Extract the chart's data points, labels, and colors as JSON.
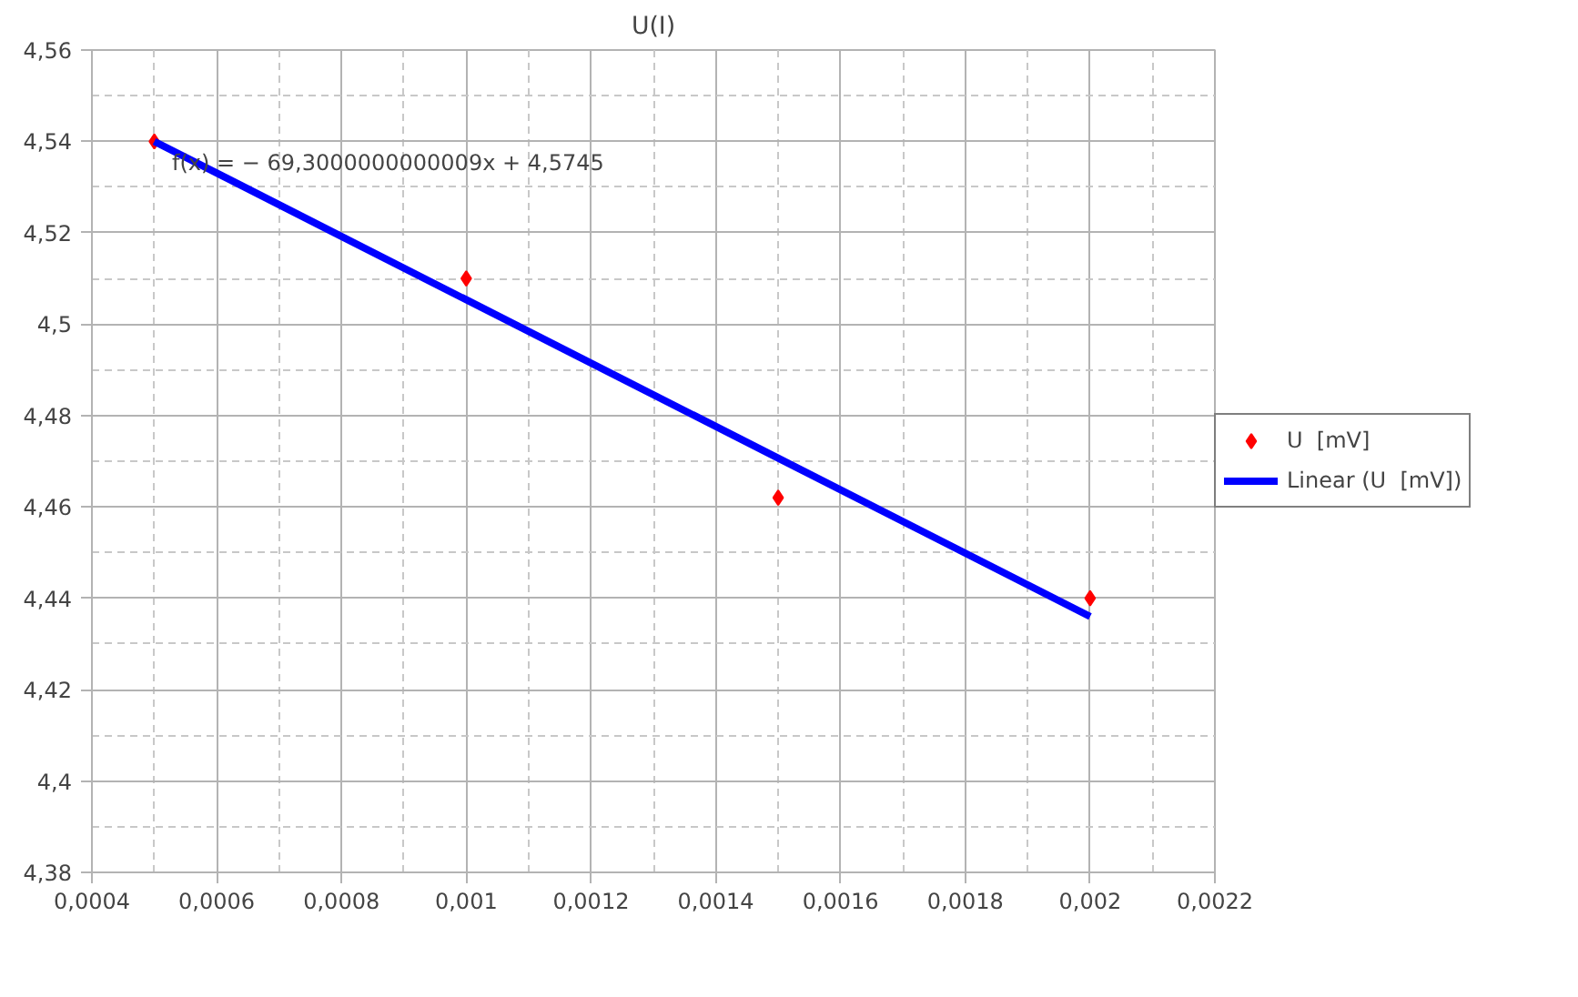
{
  "chart_data": {
    "type": "scatter",
    "title": "U(I)",
    "x": [
      0.0005,
      0.001,
      0.0015,
      0.002
    ],
    "series": [
      {
        "name": "U  [mV]",
        "color": "#ff0000",
        "marker": "diamond",
        "values": [
          4.54,
          4.51,
          4.462,
          4.44
        ]
      },
      {
        "name": "Linear (U  [mV])",
        "color": "#0000ff",
        "type": "line",
        "marker": "none",
        "x": [
          0.0005,
          0.002
        ],
        "values": [
          4.54,
          4.436
        ]
      }
    ],
    "annotations": [
      "f(x) = − 69,3000000000009x + 4,5745"
    ],
    "xlim": [
      0.0004,
      0.0022
    ],
    "xticks": [
      {
        "value": 0.0004,
        "label": "0,0004"
      },
      {
        "value": 0.0006,
        "label": "0,0006"
      },
      {
        "value": 0.0008,
        "label": "0,0008"
      },
      {
        "value": 0.001,
        "label": "0,001"
      },
      {
        "value": 0.0012,
        "label": "0,0012"
      },
      {
        "value": 0.0014,
        "label": "0,0014"
      },
      {
        "value": 0.0016,
        "label": "0,0016"
      },
      {
        "value": 0.0018,
        "label": "0,0018"
      },
      {
        "value": 0.002,
        "label": "0,002"
      },
      {
        "value": 0.0022,
        "label": "0,0022"
      }
    ],
    "ylim": [
      4.38,
      4.56
    ],
    "yticks": [
      {
        "value": 4.38,
        "label": "4,38"
      },
      {
        "value": 4.4,
        "label": "4,4"
      },
      {
        "value": 4.42,
        "label": "4,42"
      },
      {
        "value": 4.44,
        "label": "4,44"
      },
      {
        "value": 4.46,
        "label": "4,46"
      },
      {
        "value": 4.48,
        "label": "4,48"
      },
      {
        "value": 4.5,
        "label": "4,5"
      },
      {
        "value": 4.52,
        "label": "4,52"
      },
      {
        "value": 4.54,
        "label": "4,54"
      },
      {
        "value": 4.56,
        "label": "4,56"
      }
    ],
    "grid": true,
    "legend": "right"
  }
}
